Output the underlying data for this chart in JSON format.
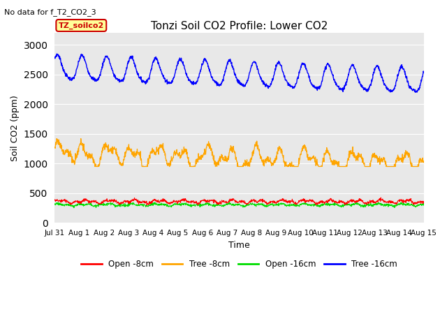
{
  "title": "Tonzi Soil CO2 Profile: Lower CO2",
  "subtitle": "No data for f_T2_CO2_3",
  "xlabel": "Time",
  "ylabel": "Soil CO2 (ppm)",
  "ylim": [
    0,
    3200
  ],
  "yticks": [
    0,
    500,
    1000,
    1500,
    2000,
    2500,
    3000
  ],
  "date_labels": [
    "Jul 31",
    "Aug 1",
    "Aug 2",
    "Aug 3",
    "Aug 4",
    "Aug 5",
    "Aug 6",
    "Aug 7",
    "Aug 8",
    "Aug 9",
    "Aug 10",
    "Aug 11",
    "Aug 12",
    "Aug 13",
    "Aug 14",
    "Aug 15"
  ],
  "colors": {
    "open_8cm": "#ff0000",
    "tree_8cm": "#ffa500",
    "open_16cm": "#00dd00",
    "tree_16cm": "#0000ff"
  },
  "legend_labels": [
    "Open -8cm",
    "Tree -8cm",
    "Open -16cm",
    "Tree -16cm"
  ],
  "box_label": "TZ_soilco2",
  "background_color": "#e8e8e8",
  "figure_background": "#ffffff",
  "n_points": 1500
}
